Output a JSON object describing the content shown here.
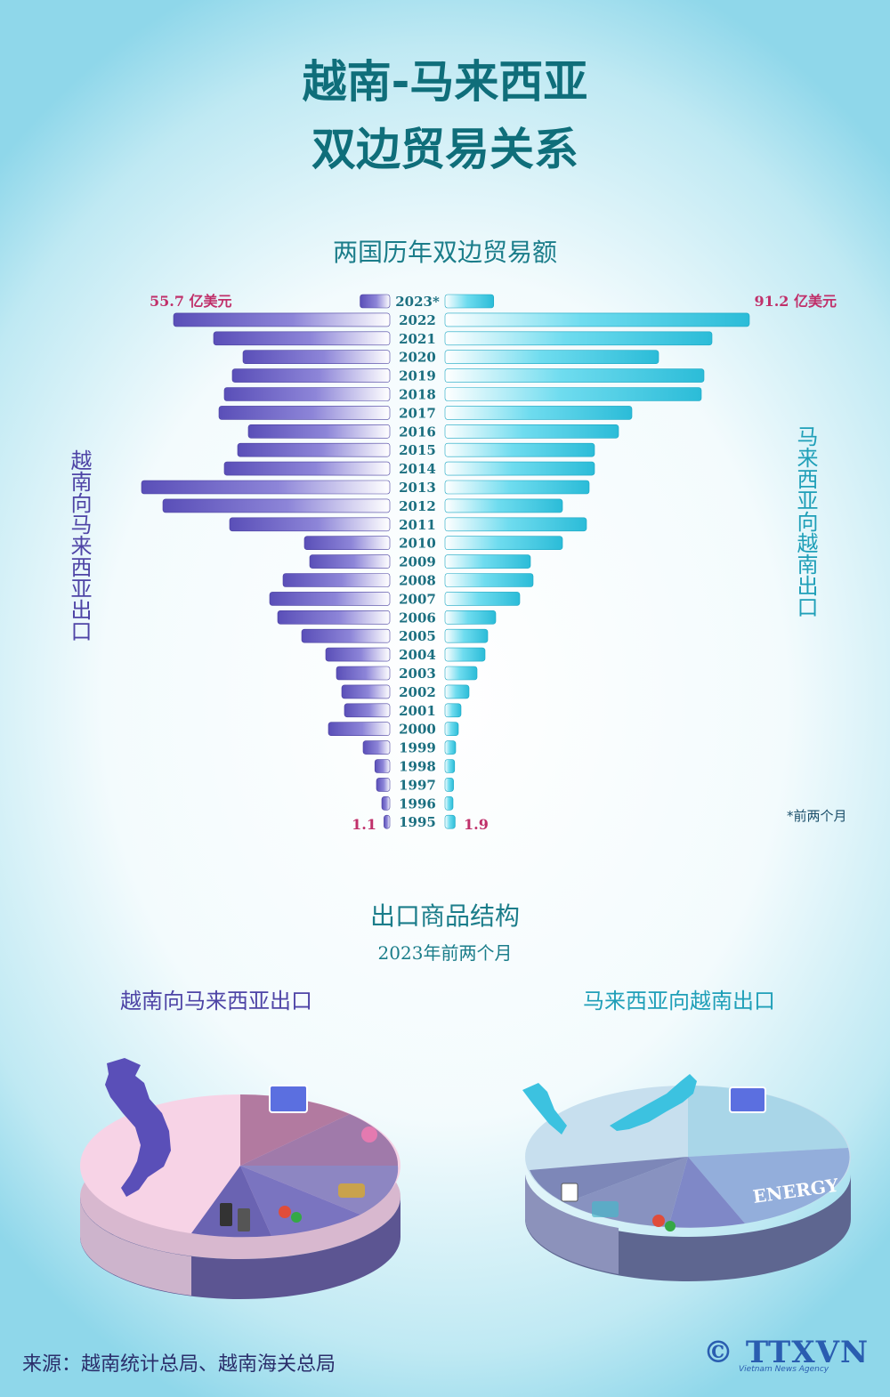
{
  "title_line1": "越南-马来西亚",
  "title_line2": "双边贸易关系",
  "section1_title": "两国历年双边贸易额",
  "left_axis_label": "越南向马来西亚出口",
  "right_axis_label": "马来西亚向越南出口",
  "note": "*前两个月",
  "section2_title": "出口商品结构",
  "section2_subtitle": "2023年前两个月",
  "pie_left_title": "越南向马来西亚出口",
  "pie_right_title": "马来西亚向越南出口",
  "source": "来源：越南统计总局、越南海关总局",
  "logo": "© TTXVN",
  "logo_sub": "Vietnam News Agency",
  "colors": {
    "left_bar": "#6e63c4",
    "right_bar": "#3fcbe5",
    "label_red": "#c0306a",
    "year": "#1b6f80"
  },
  "chart_data": {
    "type": "bar",
    "orientation": "butterfly-horizontal",
    "categories": [
      "2023*",
      "2022",
      "2021",
      "2020",
      "2019",
      "2018",
      "2017",
      "2016",
      "2015",
      "2014",
      "2013",
      "2012",
      "2011",
      "2010",
      "2009",
      "2008",
      "2007",
      "2006",
      "2005",
      "2004",
      "2003",
      "2002",
      "2001",
      "2000",
      "1999",
      "1998",
      "1997",
      "1996",
      "1995"
    ],
    "series": [
      {
        "name": "越南向马来西亚出口",
        "values": [
          5.57,
          40.5,
          33.0,
          27.5,
          29.5,
          31.0,
          32.0,
          26.5,
          28.5,
          31.0,
          46.5,
          42.5,
          30.0,
          16.0,
          15.0,
          20.0,
          22.5,
          21.0,
          16.5,
          12.0,
          10.0,
          9.0,
          8.5,
          11.5,
          5.0,
          2.8,
          2.5,
          1.5,
          1.1
        ]
      },
      {
        "name": "马来西亚向越南出口",
        "values": [
          9.12,
          57.0,
          50.0,
          40.0,
          48.5,
          48.0,
          35.0,
          32.5,
          28.0,
          28.0,
          27.0,
          22.0,
          26.5,
          22.0,
          16.0,
          16.5,
          14.0,
          9.5,
          8.0,
          7.5,
          6.0,
          4.5,
          3.0,
          2.5,
          2.0,
          1.8,
          1.6,
          1.5,
          1.9
        ]
      }
    ],
    "labels": {
      "left_top": "55.7 亿美元",
      "right_top": "91.2 亿美元",
      "left_bottom": "1.1",
      "right_bottom": "1.9"
    }
  }
}
